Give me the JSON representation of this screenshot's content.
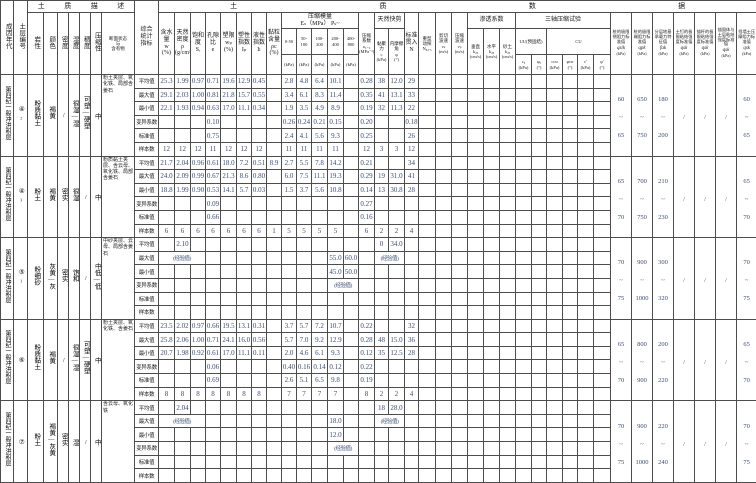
{
  "header": {
    "era": "成因年代",
    "layer": "土层编号",
    "desc_group": "土质描述",
    "desc_cols": [
      "岩性",
      "颜色",
      "密度",
      "湿度",
      "稠度",
      "压缩性"
    ],
    "section_col": "断面状态\n与\n含有物",
    "stats_col": "综合\n统计\n指标",
    "data_group": "土质数据",
    "simple_cols": [
      "含水\n量\nw\n(%)",
      "天然\n密度\nρ\n(g/cm³)",
      "饱和\n度\nSᵣ",
      "孔隙\n比\ne",
      "塑限\nwₚ\n(%)",
      "塑性\n指数\nIₚ",
      "液性\n指数\nIₗ",
      "黏粒\n含量\nρc\n(%)"
    ],
    "es_group": "压缩模量\nEₛ（MPa） Pₛ~",
    "es_ranges": [
      "0-50",
      "50-\n100",
      "100-\n200",
      "200-\n400",
      "400-\n800"
    ],
    "es_unit": "(kPa)",
    "a_col": "压缩\n系数\na₁₋₂\n(MPa⁻¹)",
    "shear_group": "天然快剪",
    "shear_cols": [
      "黏聚力\nc\n(kPa)",
      "内摩擦角\nφ\n(°)"
    ],
    "spt_col": "标准\n贯入\nN",
    "dpt_col": "重型\n动探\nN₆₃.₅",
    "vs_col": "剪切\n波速\nvₛ\n(m/s)",
    "vp_col": "压缩\n波速\nvₚ\n(m/s)",
    "perm_group": "渗透系数",
    "perm_cols": [
      "垂直\nk₂₀\n(cm/s)",
      "水平\nk₂₀\n(cm/s)",
      "砂土\nk₂₀\n(cm/s)"
    ],
    "triax_group": "三轴压缩试验",
    "uu_group": "UU(预固结)",
    "cu_group": "CU",
    "triax_cols": [
      "cᵤ\n(kPa)",
      "φᵤ\n(°)",
      "ccu\n(kPa)",
      "φcu\n(°)",
      "c′\n(kPa)",
      "φ′\n(°)"
    ],
    "q_cols": [
      {
        "name": "桩的极限侧阻力标准值",
        "sym": "qsik",
        "unit": "(kPa)"
      },
      {
        "name": "桩的极限端阻力标准值",
        "sym": "qpk",
        "unit": "(kPa)"
      },
      {
        "name": "分层地基承载力特征值",
        "sym": "fak",
        "unit": "(kPa)"
      },
      {
        "name": "土钉的极限粘结强度标准值",
        "sym": "qsk",
        "unit": "(kPa)"
      },
      {
        "name": "锚杆的极限粘结强度标准值",
        "sym": "qsk",
        "unit": "(kPa)"
      },
      {
        "name": "锚固体与土层粘结强度标准值",
        "sym": "qsk",
        "unit": "(kPa)"
      },
      {
        "name": "挡墙土压摩阻力标准值",
        "sym": "qsk",
        "unit": "(kPa)"
      }
    ]
  },
  "stat_labels": [
    "平均值",
    "最大值",
    "最小值",
    "变异系数",
    "标准值",
    "样本数"
  ],
  "empirical_note": "(经验值)",
  "colors": {
    "grid": "#4d4d4d",
    "data_ink": "#3a4c72",
    "header_ink": "#161616",
    "paper": "#ffffff"
  },
  "groups": [
    {
      "era": "第四纪一般冲洪积层",
      "layer_no": "④₂",
      "lithology": "粉质黏土",
      "color": "褐黄",
      "density": "/",
      "moisture": "很湿—湿",
      "consistency": "可塑—硬塑",
      "compressibility": "中",
      "description": "粉土夹层、氧化铁、局部含姜石",
      "rows": [
        [
          "25.3",
          "1.99",
          "0.97",
          "0.71",
          "19.6",
          "12.9",
          "0.45",
          "",
          "2.8",
          "4.8",
          "6.4",
          "10.1",
          "",
          "0.28",
          "38",
          "12.0",
          "29"
        ],
        [
          "29.1",
          "2.03",
          "1.00",
          "0.81",
          "21.8",
          "15.7",
          "0.55",
          "",
          "3.4",
          "6.1",
          "8.3",
          "11.4",
          "",
          "0.35",
          "41",
          "13.1",
          "33"
        ],
        [
          "22.1",
          "1.93",
          "0.94",
          "0.63",
          "17.0",
          "11.1",
          "0.34",
          "",
          "1.9",
          "3.5",
          "4.9",
          "8.9",
          "",
          "0.19",
          "32",
          "11.3",
          "22"
        ],
        [
          "",
          "",
          "",
          "0.10",
          "",
          "",
          "",
          "",
          "0.26",
          "0.24",
          "0.21",
          "0.15",
          "",
          "0.20",
          "",
          "",
          "0.18"
        ],
        [
          "",
          "",
          "",
          "0.75",
          "",
          "",
          "",
          "",
          "2.4",
          "4.1",
          "5.6",
          "9.3",
          "",
          "0.25",
          "",
          "",
          "26"
        ],
        [
          "12",
          "12",
          "12",
          "11",
          "12",
          "12",
          "12",
          "",
          "11",
          "11",
          "11",
          "11",
          "",
          "12",
          "3",
          "3",
          "12"
        ]
      ],
      "q": [
        "60~65",
        "650~750",
        "180~200",
        "/",
        "/",
        "/",
        "60~65"
      ]
    },
    {
      "era": "第四纪一般冲洪积层",
      "layer_no": "④₃",
      "lithology": "粉土",
      "color": "褐黄",
      "density": "密实",
      "moisture": "很湿",
      "consistency": "/",
      "compressibility": "中",
      "description": "粉质黏土夹层、含云母、氧化铁、局部含姜石",
      "rows": [
        [
          "21.7",
          "2.04",
          "0.96",
          "0.61",
          "18.0",
          "7.2",
          "0.51",
          "8.9",
          "2.7",
          "5.5",
          "7.8",
          "14.2",
          "",
          "0.21",
          "",
          "",
          "34"
        ],
        [
          "24.0",
          "2.09",
          "0.99",
          "0.67",
          "21.3",
          "8.6",
          "0.80",
          "",
          "6.0",
          "7.5",
          "11.1",
          "19.3",
          "",
          "0.29",
          "19",
          "31.0",
          "41"
        ],
        [
          "18.8",
          "1.99",
          "0.90",
          "0.53",
          "14.1",
          "5.7",
          "0.03",
          "",
          "1.5",
          "3.7",
          "5.6",
          "10.8",
          "",
          "0.14",
          "13",
          "30.8",
          "28"
        ],
        [
          "",
          "",
          "",
          "0.09",
          "",
          "",
          "",
          "",
          "",
          "",
          "",
          "",
          "",
          "0.27"
        ],
        [
          "",
          "",
          "",
          "0.66",
          "",
          "",
          "",
          "",
          "",
          "",
          "",
          "",
          "",
          "0.16"
        ],
        [
          "6",
          "6",
          "6",
          "6",
          "6",
          "6",
          "6",
          "1",
          "5",
          "5",
          "5",
          "5",
          "",
          "6",
          "2",
          "2",
          "4"
        ]
      ],
      "q": [
        "65~70",
        "700~750",
        "210~230",
        "/",
        "/",
        "/",
        "65~70"
      ]
    },
    {
      "era": "第四纪一般冲洪积层",
      "layer_no": "⑤₁",
      "lithology": "粉细砂",
      "color": "灰黄—灰",
      "density": "密实",
      "moisture": "饱和",
      "consistency": "/",
      "compressibility": "中低—低",
      "description": "中砂夹层、云母、局部含姜石",
      "rows": [
        [
          "",
          "2.10",
          "",
          "",
          "",
          "",
          "",
          "",
          "",
          "",
          "",
          "",
          "",
          "",
          "0",
          "34.0"
        ],
        [
          [
            "(经验值)",
            3
          ],
          "",
          "",
          "",
          "",
          "",
          "",
          "",
          "",
          "55.0",
          "60.0",
          "",
          [
            "(经验值)",
            2
          ]
        ],
        [
          "",
          "",
          "",
          "",
          "",
          "",
          "",
          "",
          "",
          "",
          "",
          "45.0",
          "50.0"
        ],
        [
          "",
          "",
          "",
          "",
          "",
          "",
          "",
          "",
          "",
          "",
          "",
          [
            "(经验值)",
            2
          ]
        ],
        [],
        []
      ],
      "q": [
        "70~75",
        "900~1000",
        "300~320",
        "/",
        "/",
        "/",
        "70~75"
      ]
    },
    {
      "era": "第四纪一般冲洪积层",
      "layer_no": "⑥",
      "lithology": "粉质黏土",
      "color": "褐黄",
      "density": "/",
      "moisture": "很湿—湿",
      "consistency": "可塑—硬塑",
      "compressibility": "中",
      "description": "粉土夹层、氧化铁、含姜石",
      "rows": [
        [
          "23.5",
          "2.02",
          "0.97",
          "0.66",
          "19.5",
          "13.1",
          "0.31",
          "",
          "3.7",
          "5.7",
          "7.2",
          "10.7",
          "",
          "0.22",
          "",
          "",
          "32"
        ],
        [
          "25.8",
          "2.06",
          "1.00",
          "0.71",
          "24.1",
          "16.0",
          "0.56",
          "",
          "5.7",
          "7.0",
          "9.2",
          "12.9",
          "",
          "0.28",
          "48",
          "15.0",
          "36"
        ],
        [
          "20.7",
          "1.98",
          "0.92",
          "0.61",
          "17.0",
          "11.1",
          "0.11",
          "",
          "2.0",
          "4.6",
          "6.1",
          "9.3",
          "",
          "0.12",
          "35",
          "12.5",
          "28"
        ],
        [
          "",
          "",
          "",
          "0.06",
          "",
          "",
          "",
          "",
          "0.40",
          "0.16",
          "0.14",
          "0.12",
          "",
          "0.22"
        ],
        [
          "",
          "",
          "",
          "0.69",
          "",
          "",
          "",
          "",
          "2.6",
          "5.1",
          "6.5",
          "9.8",
          "",
          "0.19"
        ],
        [
          "8",
          "8",
          "8",
          "8",
          "8",
          "8",
          "8",
          "",
          "7",
          "7",
          "7",
          "7",
          "",
          "8",
          "2",
          "2",
          "4"
        ]
      ],
      "q": [
        "65~70",
        "800~900",
        "200~220",
        "/",
        "/",
        "/",
        "65~70"
      ]
    },
    {
      "era": "第四纪一般冲洪积层",
      "layer_no": "⑦",
      "lithology": "粉土",
      "color": "褐黄—灰黄",
      "density": "密实",
      "moisture": "湿",
      "consistency": "/",
      "compressibility": "中",
      "description": "含云母、氧化铁",
      "rows": [
        [
          "",
          "2.04",
          "",
          "",
          "",
          "",
          "",
          "",
          "",
          "",
          "",
          "",
          "",
          "",
          "18",
          "28.0"
        ],
        [
          [
            "(经验值)",
            3
          ],
          "",
          "",
          "",
          "",
          "",
          "",
          "",
          "",
          "18.0",
          "",
          "",
          [
            "(经验值)",
            2
          ]
        ],
        [
          "",
          "",
          "",
          "",
          "",
          "",
          "",
          "",
          "",
          "",
          "",
          "12.0"
        ],
        [
          "",
          "",
          "",
          "",
          "",
          "",
          "",
          "",
          "",
          "",
          "",
          [
            "(经验值)",
            2
          ]
        ],
        [],
        []
      ],
      "q": [
        "70~75",
        "900~1000",
        "220~240",
        "/",
        "/",
        "/",
        "70~75"
      ]
    }
  ]
}
